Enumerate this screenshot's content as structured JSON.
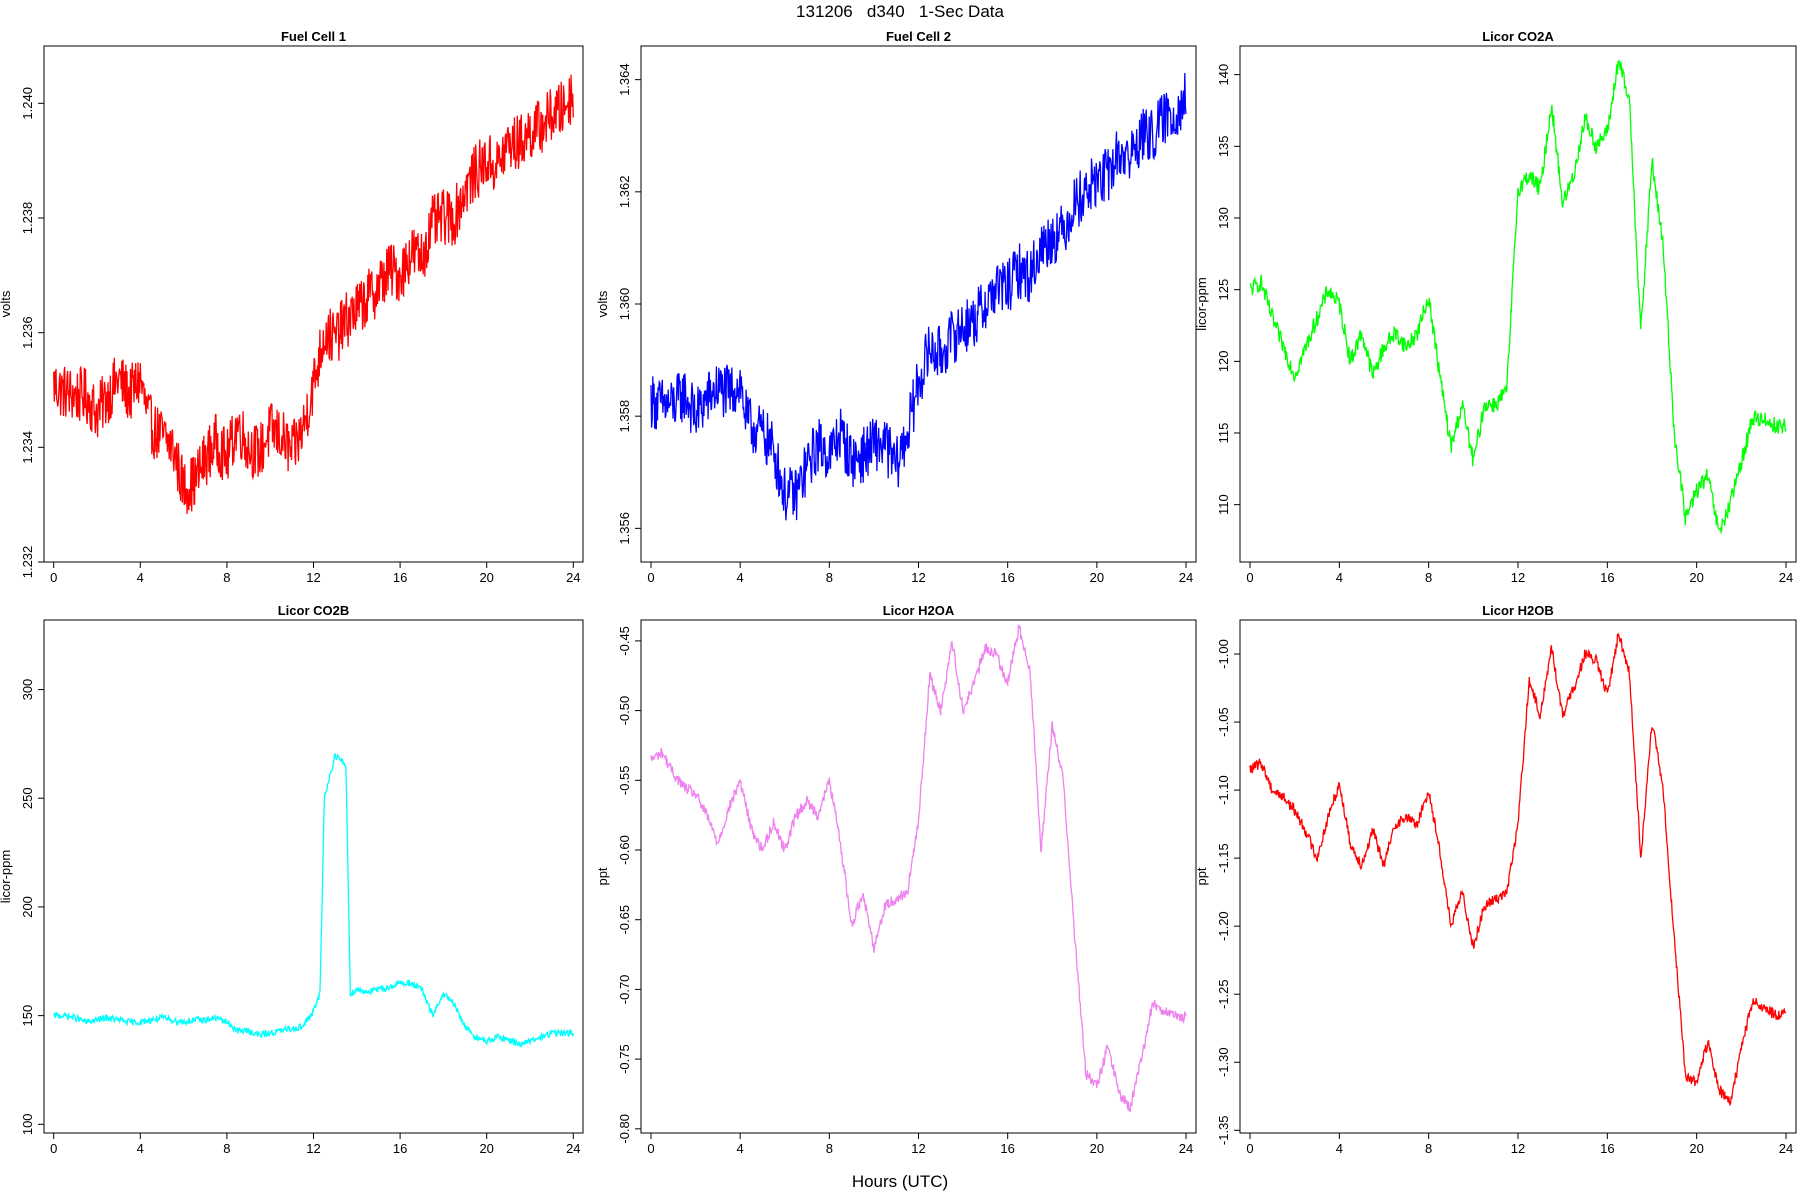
{
  "page": {
    "title": "131206   d340   1-Sec Data",
    "xlabel": "Hours (UTC)"
  },
  "chart_data": [
    {
      "type": "line",
      "title": "Fuel Cell 1",
      "ylabel": "volts",
      "color": "#ff0000",
      "xlim": [
        0,
        24
      ],
      "ylim": [
        1.232,
        1.241
      ],
      "xticks": [
        0,
        4,
        8,
        12,
        16,
        20,
        24
      ],
      "yticks": [
        1.232,
        1.234,
        1.236,
        1.238,
        1.24
      ],
      "ytick_labels": [
        "1.232",
        "1.234",
        "1.236",
        "1.238",
        "1.240"
      ],
      "noise": 0.0005,
      "x": [
        0,
        0.3,
        1,
        1.5,
        2,
        2.5,
        3,
        3.5,
        4,
        4.3,
        4.6,
        5,
        5.5,
        6,
        6.5,
        7,
        7.5,
        8,
        8.5,
        9,
        9.5,
        10,
        10.5,
        11,
        11.5,
        12,
        12.5,
        13,
        13.5,
        14,
        14.5,
        15,
        15.5,
        16,
        16.5,
        17,
        17.5,
        18,
        18.5,
        19,
        19.5,
        20,
        20.5,
        21,
        21.5,
        22,
        22.5,
        23,
        23.5,
        24
      ],
      "y": [
        1.2351,
        1.235,
        1.2349,
        1.2349,
        1.2346,
        1.2349,
        1.2352,
        1.2349,
        1.2352,
        1.2346,
        1.2343,
        1.2342,
        1.234,
        1.2333,
        1.2334,
        1.2338,
        1.2341,
        1.2338,
        1.2344,
        1.234,
        1.2339,
        1.2343,
        1.2342,
        1.2339,
        1.2343,
        1.2351,
        1.236,
        1.2359,
        1.2362,
        1.2364,
        1.2366,
        1.2368,
        1.2371,
        1.237,
        1.2374,
        1.2373,
        1.2379,
        1.238,
        1.238,
        1.2385,
        1.2388,
        1.239,
        1.2389,
        1.2393,
        1.2393,
        1.2395,
        1.2396,
        1.2398,
        1.2399,
        1.2402
      ]
    },
    {
      "type": "line",
      "title": "Fuel Cell 2",
      "ylabel": "volts",
      "color": "#0000ff",
      "xlim": [
        0,
        24
      ],
      "ylim": [
        1.3554,
        1.3646
      ],
      "xticks": [
        0,
        4,
        8,
        12,
        16,
        20,
        24
      ],
      "yticks": [
        1.356,
        1.358,
        1.36,
        1.362,
        1.364
      ],
      "ytick_labels": [
        "1.356",
        "1.358",
        "1.360",
        "1.362",
        "1.364"
      ],
      "noise": 0.0005,
      "x": [
        0,
        0.3,
        1,
        1.5,
        2,
        2.5,
        3,
        3.5,
        4,
        4.3,
        4.6,
        5,
        5.5,
        6,
        6.5,
        7,
        7.5,
        8,
        8.5,
        9,
        9.5,
        10,
        10.5,
        11,
        11.5,
        12,
        12.5,
        13,
        13.5,
        14,
        14.5,
        15,
        15.5,
        16,
        16.5,
        17,
        17.5,
        18,
        18.5,
        19,
        19.5,
        20,
        20.5,
        21,
        21.5,
        22,
        22.5,
        23,
        23.5,
        24
      ],
      "y": [
        1.3583,
        1.3582,
        1.3582,
        1.3584,
        1.358,
        1.3583,
        1.3585,
        1.3584,
        1.3586,
        1.3579,
        1.3578,
        1.3577,
        1.3574,
        1.3566,
        1.3566,
        1.3571,
        1.3575,
        1.3573,
        1.3577,
        1.3572,
        1.3573,
        1.3575,
        1.3575,
        1.3571,
        1.3577,
        1.3586,
        1.3592,
        1.3591,
        1.3594,
        1.3596,
        1.3597,
        1.36,
        1.3603,
        1.3603,
        1.3606,
        1.3605,
        1.361,
        1.3612,
        1.3613,
        1.3618,
        1.362,
        1.3622,
        1.3623,
        1.3627,
        1.3626,
        1.363,
        1.363,
        1.3633,
        1.3634,
        1.3637
      ]
    },
    {
      "type": "line",
      "title": "Licor CO2A",
      "ylabel": "licor-ppm",
      "color": "#00ff00",
      "xlim": [
        0,
        24
      ],
      "ylim": [
        106,
        142
      ],
      "xticks": [
        0,
        4,
        8,
        12,
        16,
        20,
        24
      ],
      "yticks": [
        110,
        115,
        120,
        125,
        130,
        135,
        140
      ],
      "ytick_labels": [
        "110",
        "115",
        "120",
        "125",
        "130",
        "135",
        "140"
      ],
      "noise": 0.6,
      "x": [
        0,
        0.5,
        1,
        1.5,
        2,
        2.5,
        3,
        3.5,
        4,
        4.5,
        5,
        5.5,
        6,
        6.5,
        7,
        7.5,
        8,
        8.5,
        9,
        9.5,
        10,
        10.5,
        11,
        11.5,
        12,
        12.5,
        13,
        13.5,
        14,
        14.5,
        15,
        15.5,
        16,
        16.5,
        17,
        17.5,
        18,
        18.5,
        19,
        19.5,
        20,
        20.5,
        21,
        21.5,
        22,
        22.5,
        23,
        23.5,
        24
      ],
      "y": [
        125,
        125.5,
        123,
        121,
        119,
        121,
        123,
        125,
        124,
        120,
        122,
        119,
        121,
        122,
        121,
        122,
        124.5,
        119,
        114,
        117,
        113,
        117,
        117,
        118,
        132,
        133,
        132,
        138,
        131,
        133,
        137,
        135,
        136,
        141,
        138,
        122,
        134,
        128,
        115,
        109,
        111,
        112,
        108,
        110,
        113,
        116,
        116,
        115.5,
        115.5
      ]
    },
    {
      "type": "line",
      "title": "Licor CO2B",
      "ylabel": "licor-ppm",
      "color": "#00ffff",
      "xlim": [
        0,
        24
      ],
      "ylim": [
        96,
        332
      ],
      "xticks": [
        0,
        4,
        8,
        12,
        16,
        20,
        24
      ],
      "yticks": [
        100,
        150,
        200,
        250,
        300
      ],
      "ytick_labels": [
        "100",
        "150",
        "200",
        "250",
        "300"
      ],
      "noise": 1.5,
      "x": [
        0,
        0.5,
        1,
        1.5,
        2,
        2.5,
        3,
        3.5,
        4,
        4.5,
        5,
        5.5,
        6,
        6.5,
        7,
        7.5,
        8,
        8.5,
        9,
        9.5,
        10,
        10.5,
        11,
        11.5,
        12,
        12.3,
        12.5,
        13,
        13.5,
        13.7,
        14,
        14.5,
        15,
        15.5,
        16,
        16.5,
        17,
        17.5,
        18,
        18.5,
        19,
        19.5,
        20,
        20.5,
        21,
        21.5,
        22,
        22.5,
        23,
        23.5,
        24
      ],
      "y": [
        150,
        150,
        149,
        147,
        148,
        149,
        148,
        147,
        147,
        148,
        149,
        148,
        147,
        148,
        148,
        149,
        147,
        143,
        143,
        141,
        142,
        143,
        144,
        145,
        152,
        160,
        250,
        270,
        265,
        160,
        162,
        161,
        162,
        163,
        165,
        165,
        162,
        150,
        160,
        155,
        145,
        140,
        138,
        140,
        139,
        137,
        138,
        140,
        142,
        142,
        142
      ]
    },
    {
      "type": "line",
      "title": "Licor H2OA",
      "ylabel": "ppt",
      "color": "#ee82ee",
      "xlim": [
        0,
        24
      ],
      "ylim": [
        -0.803,
        -0.435
      ],
      "xticks": [
        0,
        4,
        8,
        12,
        16,
        20,
        24
      ],
      "yticks": [
        -0.8,
        -0.75,
        -0.7,
        -0.65,
        -0.6,
        -0.55,
        -0.5,
        -0.45
      ],
      "ytick_labels": [
        "-0.80",
        "-0.75",
        "-0.70",
        "-0.65",
        "-0.60",
        "-0.55",
        "-0.50",
        "-0.45"
      ],
      "noise": 0.004,
      "x": [
        0,
        0.5,
        1,
        1.5,
        2,
        2.5,
        3,
        3.5,
        4,
        4.5,
        5,
        5.5,
        6,
        6.5,
        7,
        7.5,
        8,
        8.5,
        9,
        9.5,
        10,
        10.5,
        11,
        11.5,
        12,
        12.5,
        13,
        13.5,
        14,
        14.5,
        15,
        15.5,
        16,
        16.5,
        17,
        17.5,
        18,
        18.5,
        19,
        19.5,
        20,
        20.5,
        21,
        21.5,
        22,
        22.5,
        23,
        23.5,
        24
      ],
      "y": [
        -0.535,
        -0.53,
        -0.545,
        -0.555,
        -0.56,
        -0.575,
        -0.595,
        -0.57,
        -0.55,
        -0.585,
        -0.6,
        -0.58,
        -0.6,
        -0.575,
        -0.565,
        -0.575,
        -0.55,
        -0.595,
        -0.655,
        -0.63,
        -0.67,
        -0.64,
        -0.635,
        -0.63,
        -0.58,
        -0.475,
        -0.5,
        -0.45,
        -0.5,
        -0.48,
        -0.455,
        -0.46,
        -0.48,
        -0.44,
        -0.47,
        -0.6,
        -0.51,
        -0.55,
        -0.66,
        -0.76,
        -0.77,
        -0.74,
        -0.775,
        -0.785,
        -0.75,
        -0.71,
        -0.715,
        -0.72,
        -0.72
      ]
    },
    {
      "type": "line",
      "title": "Licor H2OB",
      "ylabel": "ppt",
      "color": "#ff0000",
      "xlim": [
        0,
        24
      ],
      "ylim": [
        -1.352,
        -0.975
      ],
      "xticks": [
        0,
        4,
        8,
        12,
        16,
        20,
        24
      ],
      "yticks": [
        -1.35,
        -1.3,
        -1.25,
        -1.2,
        -1.15,
        -1.1,
        -1.05,
        -1.0
      ],
      "ytick_labels": [
        "-1.35",
        "-1.30",
        "-1.25",
        "-1.20",
        "-1.15",
        "-1.10",
        "-1.05",
        "-1.00"
      ],
      "noise": 0.004,
      "x": [
        0,
        0.5,
        1,
        1.5,
        2,
        2.5,
        3,
        3.5,
        4,
        4.5,
        5,
        5.5,
        6,
        6.5,
        7,
        7.5,
        8,
        8.5,
        9,
        9.5,
        10,
        10.5,
        11,
        11.5,
        12,
        12.5,
        13,
        13.5,
        14,
        14.5,
        15,
        15.5,
        16,
        16.5,
        17,
        17.5,
        18,
        18.5,
        19,
        19.5,
        20,
        20.5,
        21,
        21.5,
        22,
        22.5,
        23,
        23.5,
        24
      ],
      "y": [
        -1.085,
        -1.08,
        -1.1,
        -1.105,
        -1.115,
        -1.13,
        -1.15,
        -1.12,
        -1.095,
        -1.14,
        -1.155,
        -1.13,
        -1.155,
        -1.125,
        -1.12,
        -1.125,
        -1.1,
        -1.145,
        -1.2,
        -1.175,
        -1.215,
        -1.185,
        -1.18,
        -1.175,
        -1.125,
        -1.02,
        -1.045,
        -0.995,
        -1.045,
        -1.025,
        -1.0,
        -1.005,
        -1.03,
        -0.985,
        -1.015,
        -1.15,
        -1.05,
        -1.1,
        -1.21,
        -1.31,
        -1.315,
        -1.285,
        -1.32,
        -1.33,
        -1.29,
        -1.255,
        -1.26,
        -1.265,
        -1.265
      ]
    }
  ]
}
